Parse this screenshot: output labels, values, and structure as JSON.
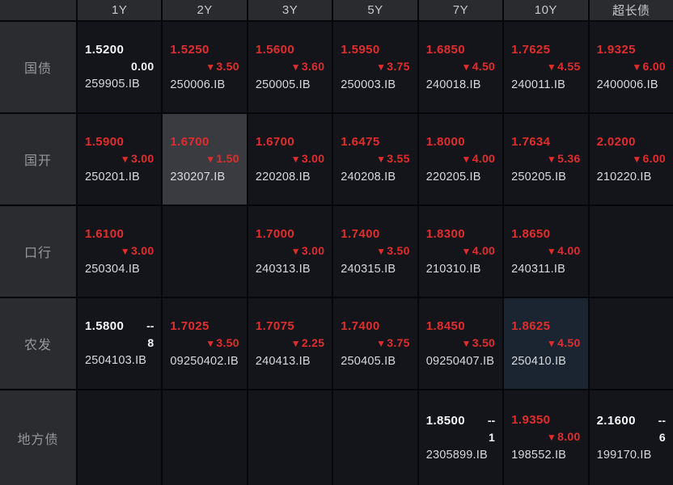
{
  "board": {
    "columns": [
      "1Y",
      "2Y",
      "3Y",
      "5Y",
      "7Y",
      "10Y",
      "超长债"
    ],
    "rows": [
      {
        "label": "国债",
        "cells": [
          {
            "yield": "1.5200",
            "yield_color": "white",
            "top_right": "",
            "arrow": false,
            "change": "0.00",
            "change_color": "white",
            "code": "259905.IB",
            "highlight": ""
          },
          {
            "yield": "1.5250",
            "yield_color": "red",
            "top_right": "",
            "arrow": true,
            "change": "3.50",
            "change_color": "red",
            "code": "250006.IB",
            "highlight": ""
          },
          {
            "yield": "1.5600",
            "yield_color": "red",
            "top_right": "",
            "arrow": true,
            "change": "3.60",
            "change_color": "red",
            "code": "250005.IB",
            "highlight": ""
          },
          {
            "yield": "1.5950",
            "yield_color": "red",
            "top_right": "",
            "arrow": true,
            "change": "3.75",
            "change_color": "red",
            "code": "250003.IB",
            "highlight": ""
          },
          {
            "yield": "1.6850",
            "yield_color": "red",
            "top_right": "",
            "arrow": true,
            "change": "4.50",
            "change_color": "red",
            "code": "240018.IB",
            "highlight": ""
          },
          {
            "yield": "1.7625",
            "yield_color": "red",
            "top_right": "",
            "arrow": true,
            "change": "4.55",
            "change_color": "red",
            "code": "240011.IB",
            "highlight": ""
          },
          {
            "yield": "1.9325",
            "yield_color": "red",
            "top_right": "",
            "arrow": true,
            "change": "6.00",
            "change_color": "red",
            "code": "2400006.IB",
            "highlight": ""
          }
        ]
      },
      {
        "label": "国开",
        "cells": [
          {
            "yield": "1.5900",
            "yield_color": "red",
            "top_right": "",
            "arrow": true,
            "change": "3.00",
            "change_color": "red",
            "code": "250201.IB",
            "highlight": ""
          },
          {
            "yield": "1.6700",
            "yield_color": "red",
            "top_right": "",
            "arrow": true,
            "change": "1.50",
            "change_color": "red",
            "code": "230207.IB",
            "highlight": "gray"
          },
          {
            "yield": "1.6700",
            "yield_color": "red",
            "top_right": "",
            "arrow": true,
            "change": "3.00",
            "change_color": "red",
            "code": "220208.IB",
            "highlight": ""
          },
          {
            "yield": "1.6475",
            "yield_color": "red",
            "top_right": "",
            "arrow": true,
            "change": "3.55",
            "change_color": "red",
            "code": "240208.IB",
            "highlight": ""
          },
          {
            "yield": "1.8000",
            "yield_color": "red",
            "top_right": "",
            "arrow": true,
            "change": "4.00",
            "change_color": "red",
            "code": "220205.IB",
            "highlight": ""
          },
          {
            "yield": "1.7634",
            "yield_color": "red",
            "top_right": "",
            "arrow": true,
            "change": "5.36",
            "change_color": "red",
            "code": "250205.IB",
            "highlight": ""
          },
          {
            "yield": "2.0200",
            "yield_color": "red",
            "top_right": "",
            "arrow": true,
            "change": "6.00",
            "change_color": "red",
            "code": "210220.IB",
            "highlight": ""
          }
        ]
      },
      {
        "label": "口行",
        "cells": [
          {
            "yield": "1.6100",
            "yield_color": "red",
            "top_right": "",
            "arrow": true,
            "change": "3.00",
            "change_color": "red",
            "code": "250304.IB",
            "highlight": ""
          },
          null,
          {
            "yield": "1.7000",
            "yield_color": "red",
            "top_right": "",
            "arrow": true,
            "change": "3.00",
            "change_color": "red",
            "code": "240313.IB",
            "highlight": ""
          },
          {
            "yield": "1.7400",
            "yield_color": "red",
            "top_right": "",
            "arrow": true,
            "change": "3.50",
            "change_color": "red",
            "code": "240315.IB",
            "highlight": ""
          },
          {
            "yield": "1.8300",
            "yield_color": "red",
            "top_right": "",
            "arrow": true,
            "change": "4.00",
            "change_color": "red",
            "code": "210310.IB",
            "highlight": ""
          },
          {
            "yield": "1.8650",
            "yield_color": "red",
            "top_right": "",
            "arrow": true,
            "change": "4.00",
            "change_color": "red",
            "code": "240311.IB",
            "highlight": ""
          },
          null
        ]
      },
      {
        "label": "农发",
        "cells": [
          {
            "yield": "1.5800",
            "yield_color": "white",
            "top_right": "--",
            "arrow": false,
            "change": "8",
            "change_color": "white",
            "code": "2504103.IB",
            "highlight": ""
          },
          {
            "yield": "1.7025",
            "yield_color": "red",
            "top_right": "",
            "arrow": true,
            "change": "3.50",
            "change_color": "red",
            "code": "09250402.IB",
            "highlight": ""
          },
          {
            "yield": "1.7075",
            "yield_color": "red",
            "top_right": "",
            "arrow": true,
            "change": "2.25",
            "change_color": "red",
            "code": "240413.IB",
            "highlight": ""
          },
          {
            "yield": "1.7400",
            "yield_color": "red",
            "top_right": "",
            "arrow": true,
            "change": "3.75",
            "change_color": "red",
            "code": "250405.IB",
            "highlight": ""
          },
          {
            "yield": "1.8450",
            "yield_color": "red",
            "top_right": "",
            "arrow": true,
            "change": "3.50",
            "change_color": "red",
            "code": "09250407.IB",
            "highlight": ""
          },
          {
            "yield": "1.8625",
            "yield_color": "red",
            "top_right": "",
            "arrow": true,
            "change": "4.50",
            "change_color": "red",
            "code": "250410.IB",
            "highlight": "blue"
          },
          null
        ]
      },
      {
        "label": "地方债",
        "cells": [
          null,
          null,
          null,
          null,
          {
            "yield": "1.8500",
            "yield_color": "white",
            "top_right": "--",
            "arrow": false,
            "change": "1",
            "change_color": "white",
            "code": "2305899.IB",
            "highlight": ""
          },
          {
            "yield": "1.9350",
            "yield_color": "red",
            "top_right": "",
            "arrow": true,
            "change": "8.00",
            "change_color": "red",
            "code": "198552.IB",
            "highlight": ""
          },
          {
            "yield": "2.1600",
            "yield_color": "white",
            "top_right": "--",
            "arrow": false,
            "change": "6",
            "change_color": "white",
            "code": "199170.IB",
            "highlight": ""
          }
        ]
      }
    ]
  },
  "colors": {
    "down_red": "#e12d2d",
    "neutral_white": "#f4f5f6",
    "code_text": "#d8d9db",
    "header_bg": "#2a2b2f",
    "label_bg": "#2b2c30",
    "cell_bg": "#14151a",
    "highlight_gray": "#3a3b40",
    "highlight_blue": "#1b2531",
    "grid_line": "#060709"
  }
}
